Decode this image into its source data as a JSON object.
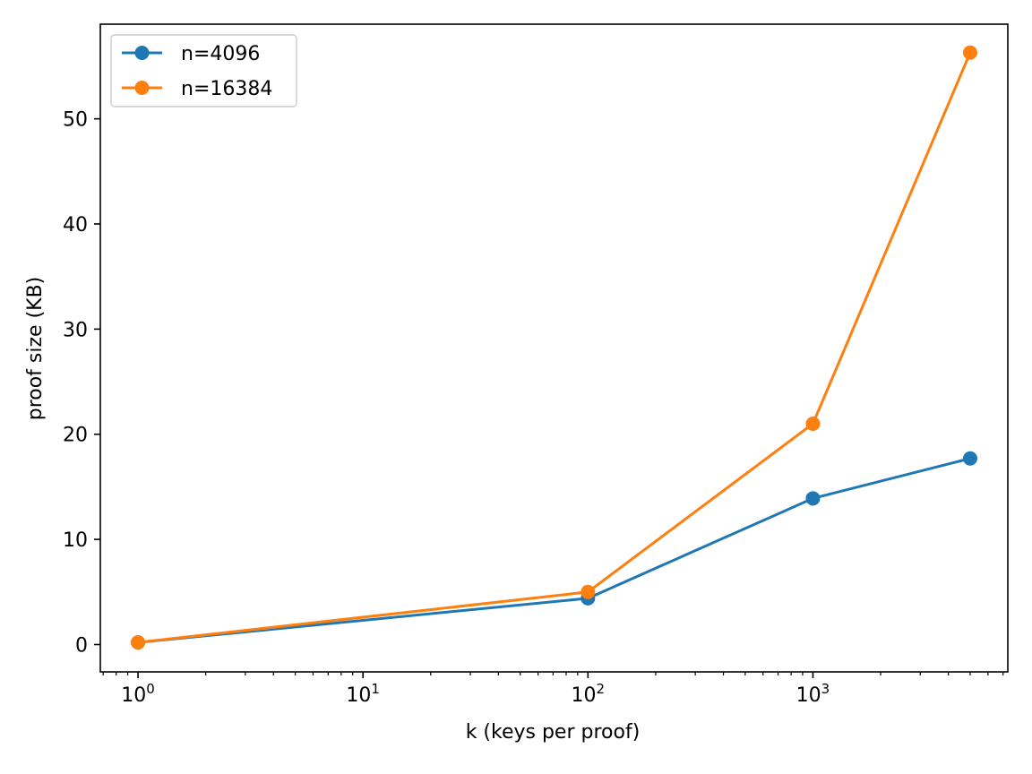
{
  "chart_data": {
    "type": "line",
    "title": "",
    "xlabel": "k (keys per proof)",
    "ylabel": "proof size (KB)",
    "xscale": "log",
    "xlim": [
      0.68,
      7350
    ],
    "ylim": [
      -2.6,
      59.0
    ],
    "x": [
      1,
      100,
      1000,
      5000
    ],
    "xticks": [
      {
        "value": 1,
        "base": "10",
        "exp": "0"
      },
      {
        "value": 10,
        "base": "10",
        "exp": "1"
      },
      {
        "value": 100,
        "base": "10",
        "exp": "2"
      },
      {
        "value": 1000,
        "base": "10",
        "exp": "3"
      }
    ],
    "yticks": [
      {
        "value": 0,
        "label": "0"
      },
      {
        "value": 10,
        "label": "10"
      },
      {
        "value": 20,
        "label": "20"
      },
      {
        "value": 30,
        "label": "30"
      },
      {
        "value": 40,
        "label": "40"
      },
      {
        "value": 50,
        "label": "50"
      }
    ],
    "series": [
      {
        "name": "n=4096",
        "color": "#1f77b4",
        "values": [
          0.2,
          4.4,
          13.9,
          17.7
        ]
      },
      {
        "name": "n=16384",
        "color": "#ff7f0e",
        "values": [
          0.2,
          5.0,
          21.0,
          56.3
        ]
      }
    ],
    "grid": false,
    "legend": "upper-left"
  }
}
